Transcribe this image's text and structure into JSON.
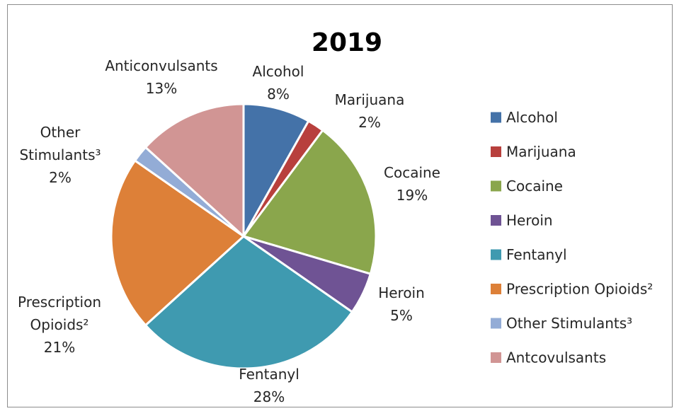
{
  "chart_data": {
    "type": "pie",
    "title": "2019",
    "categories": [
      "Alcohol",
      "Marijuana",
      "Cocaine",
      "Heroin",
      "Fentanyl",
      "Prescription Opioids²",
      "Other Stimulants³",
      "Anticonvulsants"
    ],
    "values": [
      8,
      2,
      19,
      5,
      28,
      21,
      2,
      13
    ],
    "value_labels": [
      "8%",
      "2%",
      "19%",
      "5%",
      "28%",
      "21%",
      "2%",
      "13%"
    ],
    "colors": [
      "#4472a8",
      "#b8403d",
      "#8aa64c",
      "#6f5394",
      "#3f9ab0",
      "#dd8038",
      "#93acd6",
      "#d19594"
    ],
    "legend": {
      "placement": "right",
      "entries": [
        "Alcohol",
        "Marijuana",
        "Cocaine",
        "Heroin",
        "Fentanyl",
        "Prescription Opioids²",
        "Other Stimulants³",
        "Antcovulsants"
      ]
    },
    "slice_labels": [
      {
        "lines": [
          "Alcohol",
          "8%"
        ]
      },
      {
        "lines": [
          "Marijuana",
          "2%"
        ]
      },
      {
        "lines": [
          "Cocaine",
          "19%"
        ]
      },
      {
        "lines": [
          "Heroin",
          "5%"
        ]
      },
      {
        "lines": [
          "Fentanyl",
          "28%"
        ]
      },
      {
        "lines": [
          "Prescription",
          "Opioids²",
          "21%"
        ]
      },
      {
        "lines": [
          "Other",
          "Stimulants³",
          "2%"
        ]
      },
      {
        "lines": [
          "Anticonvulsants",
          "13%"
        ]
      }
    ]
  }
}
